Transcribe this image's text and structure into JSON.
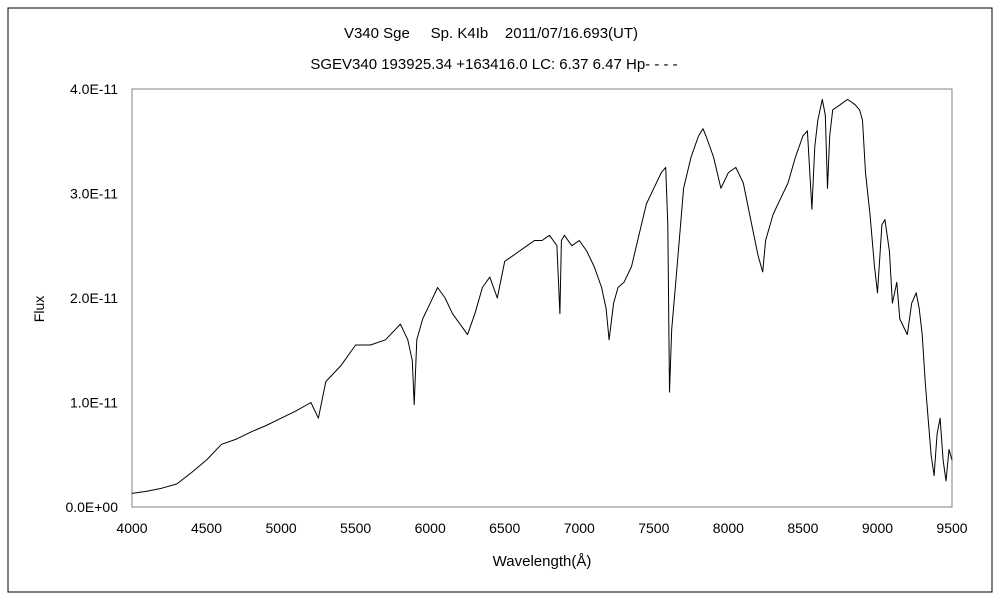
{
  "chart_data": {
    "type": "line",
    "title": "V340 Sge     Sp. K4Ib    2011/07/16.693(UT)",
    "subtitle": "SGEV340 193925.34 +163416.0 LC: 6.37 6.47 Hp- - - -",
    "xlabel": "Wavelength(Å)",
    "ylabel": "Flux",
    "xlim": [
      4000,
      9500
    ],
    "ylim": [
      0,
      4e-11
    ],
    "xticks": [
      4000,
      4500,
      5000,
      5500,
      6000,
      6500,
      7000,
      7500,
      8000,
      8500,
      9000,
      9500
    ],
    "xtick_labels": [
      "4000",
      "4500",
      "5000",
      "5500",
      "6000",
      "6500",
      "7000",
      "7500",
      "8000",
      "8500",
      "9000",
      "9500"
    ],
    "yticks": [
      0,
      1e-11,
      2e-11,
      3e-11,
      4e-11
    ],
    "ytick_labels": [
      "0.0E+00",
      "1.0E-11",
      "2.0E-11",
      "3.0E-11",
      "4.0E-11"
    ],
    "grid": false,
    "line_color": "#000000",
    "series": [
      {
        "x": [
          4000,
          4100,
          4200,
          4300,
          4400,
          4500,
          4600,
          4700,
          4800,
          4900,
          5000,
          5100,
          5200,
          5250,
          5300,
          5400,
          5500,
          5600,
          5700,
          5800,
          5850,
          5880,
          5893,
          5910,
          5950,
          6000,
          6050,
          6100,
          6150,
          6200,
          6250,
          6300,
          6350,
          6400,
          6450,
          6500,
          6550,
          6600,
          6650,
          6700,
          6750,
          6800,
          6850,
          6870,
          6880,
          6900,
          6950,
          7000,
          7050,
          7100,
          7150,
          7180,
          7200,
          7230,
          7260,
          7300,
          7350,
          7400,
          7450,
          7500,
          7550,
          7580,
          7594,
          7605,
          7620,
          7650,
          7700,
          7750,
          7800,
          7830,
          7850,
          7900,
          7950,
          8000,
          8050,
          8100,
          8150,
          8200,
          8230,
          8250,
          8300,
          8350,
          8400,
          8450,
          8500,
          8530,
          8560,
          8580,
          8600,
          8630,
          8650,
          8665,
          8680,
          8700,
          8750,
          8800,
          8850,
          8880,
          8900,
          8920,
          8950,
          8980,
          9000,
          9030,
          9050,
          9080,
          9100,
          9130,
          9150,
          9200,
          9230,
          9260,
          9280,
          9300,
          9320,
          9340,
          9360,
          9380,
          9400,
          9420,
          9440,
          9460,
          9480,
          9500
        ],
        "y": [
          1.3e-12,
          1.5e-12,
          1.8e-12,
          2.2e-12,
          3.3e-12,
          4.5e-12,
          6e-12,
          6.5e-12,
          7.2e-12,
          7.8e-12,
          8.5e-12,
          9.2e-12,
          1e-11,
          8.5e-12,
          1.2e-11,
          1.35e-11,
          1.55e-11,
          1.55e-11,
          1.6e-11,
          1.75e-11,
          1.6e-11,
          1.4e-11,
          9.8e-12,
          1.6e-11,
          1.8e-11,
          1.95e-11,
          2.1e-11,
          2e-11,
          1.85e-11,
          1.75e-11,
          1.65e-11,
          1.85e-11,
          2.1e-11,
          2.2e-11,
          2e-11,
          2.35e-11,
          2.4e-11,
          2.45e-11,
          2.5e-11,
          2.55e-11,
          2.55e-11,
          2.6e-11,
          2.5e-11,
          1.85e-11,
          2.55e-11,
          2.6e-11,
          2.5e-11,
          2.55e-11,
          2.45e-11,
          2.3e-11,
          2.1e-11,
          1.9e-11,
          1.6e-11,
          1.95e-11,
          2.1e-11,
          2.15e-11,
          2.3e-11,
          2.6e-11,
          2.9e-11,
          3.05e-11,
          3.2e-11,
          3.25e-11,
          2.7e-11,
          1.1e-11,
          1.7e-11,
          2.2e-11,
          3.05e-11,
          3.35e-11,
          3.55e-11,
          3.62e-11,
          3.55e-11,
          3.35e-11,
          3.05e-11,
          3.2e-11,
          3.25e-11,
          3.1e-11,
          2.75e-11,
          2.4e-11,
          2.25e-11,
          2.55e-11,
          2.8e-11,
          2.95e-11,
          3.1e-11,
          3.35e-11,
          3.55e-11,
          3.6e-11,
          2.85e-11,
          3.45e-11,
          3.7e-11,
          3.9e-11,
          3.75e-11,
          3.05e-11,
          3.55e-11,
          3.8e-11,
          3.85e-11,
          3.9e-11,
          3.85e-11,
          3.8e-11,
          3.7e-11,
          3.2e-11,
          2.8e-11,
          2.3e-11,
          2.05e-11,
          2.7e-11,
          2.75e-11,
          2.45e-11,
          1.95e-11,
          2.15e-11,
          1.8e-11,
          1.65e-11,
          1.95e-11,
          2.05e-11,
          1.9e-11,
          1.65e-11,
          1.2e-11,
          8.5e-12,
          5e-12,
          3e-12,
          7e-12,
          8.5e-12,
          4.5e-12,
          2.5e-12,
          5.5e-12,
          4.5e-12
        ]
      }
    ]
  }
}
